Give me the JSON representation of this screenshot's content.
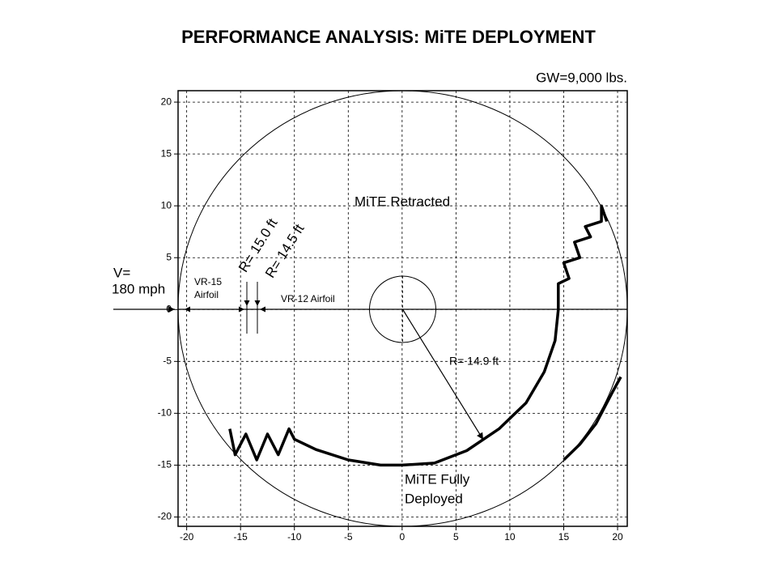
{
  "chart_data": {
    "type": "line",
    "title": "PERFORMANCE ANALYSIS: MiTE DEPLOYMENT",
    "annotations": [
      "GW=9,000 lbs.",
      "MiTE Retracted",
      "R= 15.0 ft",
      "R= 14.5 ft",
      "V=",
      "180 mph",
      "VR-15",
      "Airfoil",
      "VR-12 Airfoil",
      "R= 14.9 ft",
      "MiTE Fully",
      "Deployed"
    ],
    "xlim": [
      -20.8,
      20.9
    ],
    "ylim": [
      -20.9,
      21.1
    ],
    "xticks": [
      -20,
      -15,
      -10,
      -5,
      0,
      5,
      10,
      15,
      20
    ],
    "yticks": [
      -20,
      -15,
      -10,
      -5,
      0,
      5,
      10,
      15,
      20
    ],
    "grid": true,
    "color": "#000000",
    "x": [
      -16,
      -15.5,
      -14.5,
      -13.5,
      -12.5,
      -11.5,
      -10.5,
      -10,
      -8,
      -5,
      -2,
      0,
      3,
      6,
      9,
      11.5,
      13.2,
      14.2,
      14.5,
      14.5,
      15.5,
      15,
      16.5,
      16,
      17.5,
      17,
      18.5,
      18.5,
      19,
      null,
      15,
      16.5,
      18,
      19.5,
      20.3
    ],
    "y": [
      -11.5,
      -14,
      -12,
      -14.5,
      -12,
      -14,
      -11.5,
      -12.5,
      -13.5,
      -14.5,
      -15,
      -15,
      -14.8,
      -13.6,
      -11.5,
      -9,
      -6,
      -3,
      0,
      2.5,
      3,
      4.5,
      5,
      6.5,
      7,
      8,
      8.5,
      10,
      8.5,
      null,
      -14.5,
      -13,
      -11,
      -8,
      -6.5
    ]
  }
}
